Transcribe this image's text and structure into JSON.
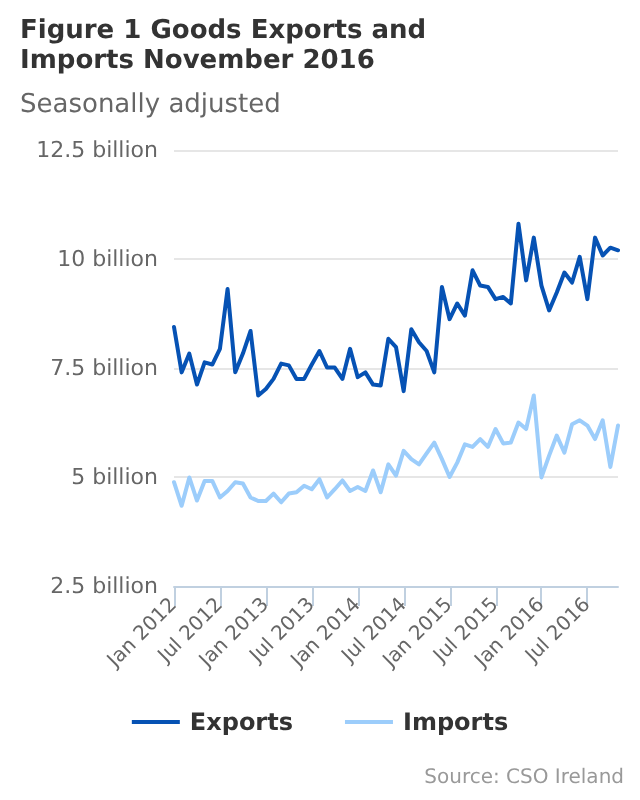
{
  "chart_data": {
    "type": "line",
    "title": "Figure 1 Goods Exports and Imports November 2016",
    "subtitle": "Seasonally adjusted",
    "annotations": [
      "Source: CSO Ireland"
    ],
    "categories": [
      "Jan 2012",
      null,
      null,
      null,
      null,
      null,
      "Jul 2012",
      null,
      null,
      null,
      null,
      null,
      "Jan 2013",
      null,
      null,
      null,
      null,
      null,
      "Jul 2013",
      null,
      null,
      null,
      null,
      null,
      "Jan 2014",
      null,
      null,
      null,
      null,
      null,
      "Jul 2014",
      null,
      null,
      null,
      null,
      null,
      "Jan 2015",
      null,
      null,
      null,
      null,
      null,
      "Jul 2015",
      null,
      null,
      null,
      null,
      null,
      "Jan 2016",
      null,
      null,
      null,
      null,
      null,
      "Jul 2016",
      null,
      null,
      null,
      null
    ],
    "series": [
      {
        "name": "Exports",
        "color": "#0652b4",
        "values": [
          8.44,
          7.4,
          7.83,
          7.12,
          7.63,
          7.58,
          7.94,
          9.31,
          7.4,
          7.83,
          8.35,
          6.87,
          7.02,
          7.25,
          7.6,
          7.56,
          7.25,
          7.25,
          7.58,
          7.89,
          7.51,
          7.51,
          7.25,
          7.94,
          7.29,
          7.4,
          7.12,
          7.1,
          8.17,
          7.98,
          6.97,
          8.39,
          8.09,
          7.89,
          7.4,
          9.36,
          8.62,
          8.98,
          8.7,
          9.74,
          9.39,
          9.36,
          9.08,
          9.13,
          8.98,
          10.81,
          9.51,
          10.49,
          9.39,
          8.82,
          9.23,
          9.69,
          9.46,
          10.05,
          9.08,
          10.49,
          10.08,
          10.26,
          10.2
        ]
      },
      {
        "name": "Imports",
        "color": "#9ccdfb",
        "values": [
          4.88,
          4.34,
          4.99,
          4.46,
          4.91,
          4.91,
          4.53,
          4.68,
          4.88,
          4.85,
          4.53,
          4.45,
          4.45,
          4.62,
          4.42,
          4.62,
          4.65,
          4.8,
          4.72,
          4.95,
          4.53,
          4.72,
          4.92,
          4.68,
          4.77,
          4.68,
          5.15,
          4.65,
          5.29,
          5.03,
          5.6,
          5.41,
          5.29,
          5.54,
          5.79,
          5.41,
          5.0,
          5.33,
          5.75,
          5.69,
          5.87,
          5.69,
          6.1,
          5.77,
          5.79,
          6.25,
          6.1,
          6.87,
          4.99,
          5.49,
          5.95,
          5.56,
          6.21,
          6.3,
          6.18,
          5.87,
          6.3,
          5.23,
          6.18
        ]
      }
    ],
    "ylim": [
      2.5,
      12.5
    ],
    "yticks": [
      {
        "value": 2.5,
        "label": "2.5 billion"
      },
      {
        "value": 5,
        "label": "5 billion"
      },
      {
        "value": 7.5,
        "label": "7.5 billion"
      },
      {
        "value": 10,
        "label": "10 billion"
      },
      {
        "value": 12.5,
        "label": "12.5 billion"
      }
    ],
    "grid": "y",
    "legend": "bottom",
    "marker": "none",
    "line_style": "solid"
  }
}
